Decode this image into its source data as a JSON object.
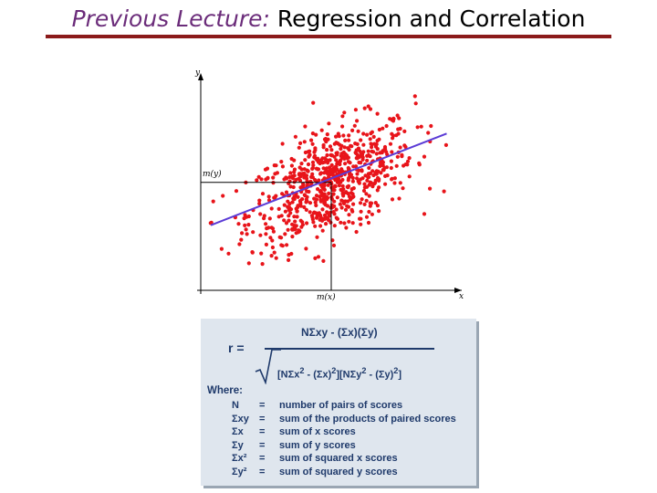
{
  "slide": {
    "title_prefix": "Previous Lecture:",
    "title_rest": " Regression and Correlation"
  },
  "chart_data": {
    "type": "scatter",
    "title": "",
    "xlabel": "x",
    "ylabel": "y",
    "mean_x_label": "m(x)",
    "mean_y_label": "m(y)",
    "xlim": [
      0,
      10
    ],
    "ylim": [
      0,
      10
    ],
    "grid": false,
    "mean_x": 5.2,
    "mean_y": 5.3,
    "regression_line": {
      "x": [
        0.4,
        9.8
      ],
      "y": [
        3.2,
        7.7
      ]
    },
    "point_count": 750,
    "colors": {
      "points": "#e8141a",
      "line": "#5b3bd6",
      "axes": "#000000"
    }
  },
  "formula": {
    "r_label": "r =",
    "numerator": "NΣxy - (Σx)(Σy)",
    "where": "Where:",
    "definitions": [
      {
        "symbol": "N",
        "eq": "=",
        "text": "number of pairs of scores"
      },
      {
        "symbol": "Σxy",
        "eq": "=",
        "text": "sum of the products of paired scores"
      },
      {
        "symbol": "Σx",
        "eq": "=",
        "text": "sum of x scores"
      },
      {
        "symbol": "Σy",
        "eq": "=",
        "text": "sum of y scores"
      },
      {
        "symbol": "Σx²",
        "eq": "=",
        "text": "sum of squared x scores"
      },
      {
        "symbol": "Σy²",
        "eq": "=",
        "text": "sum of squared y scores"
      }
    ]
  }
}
